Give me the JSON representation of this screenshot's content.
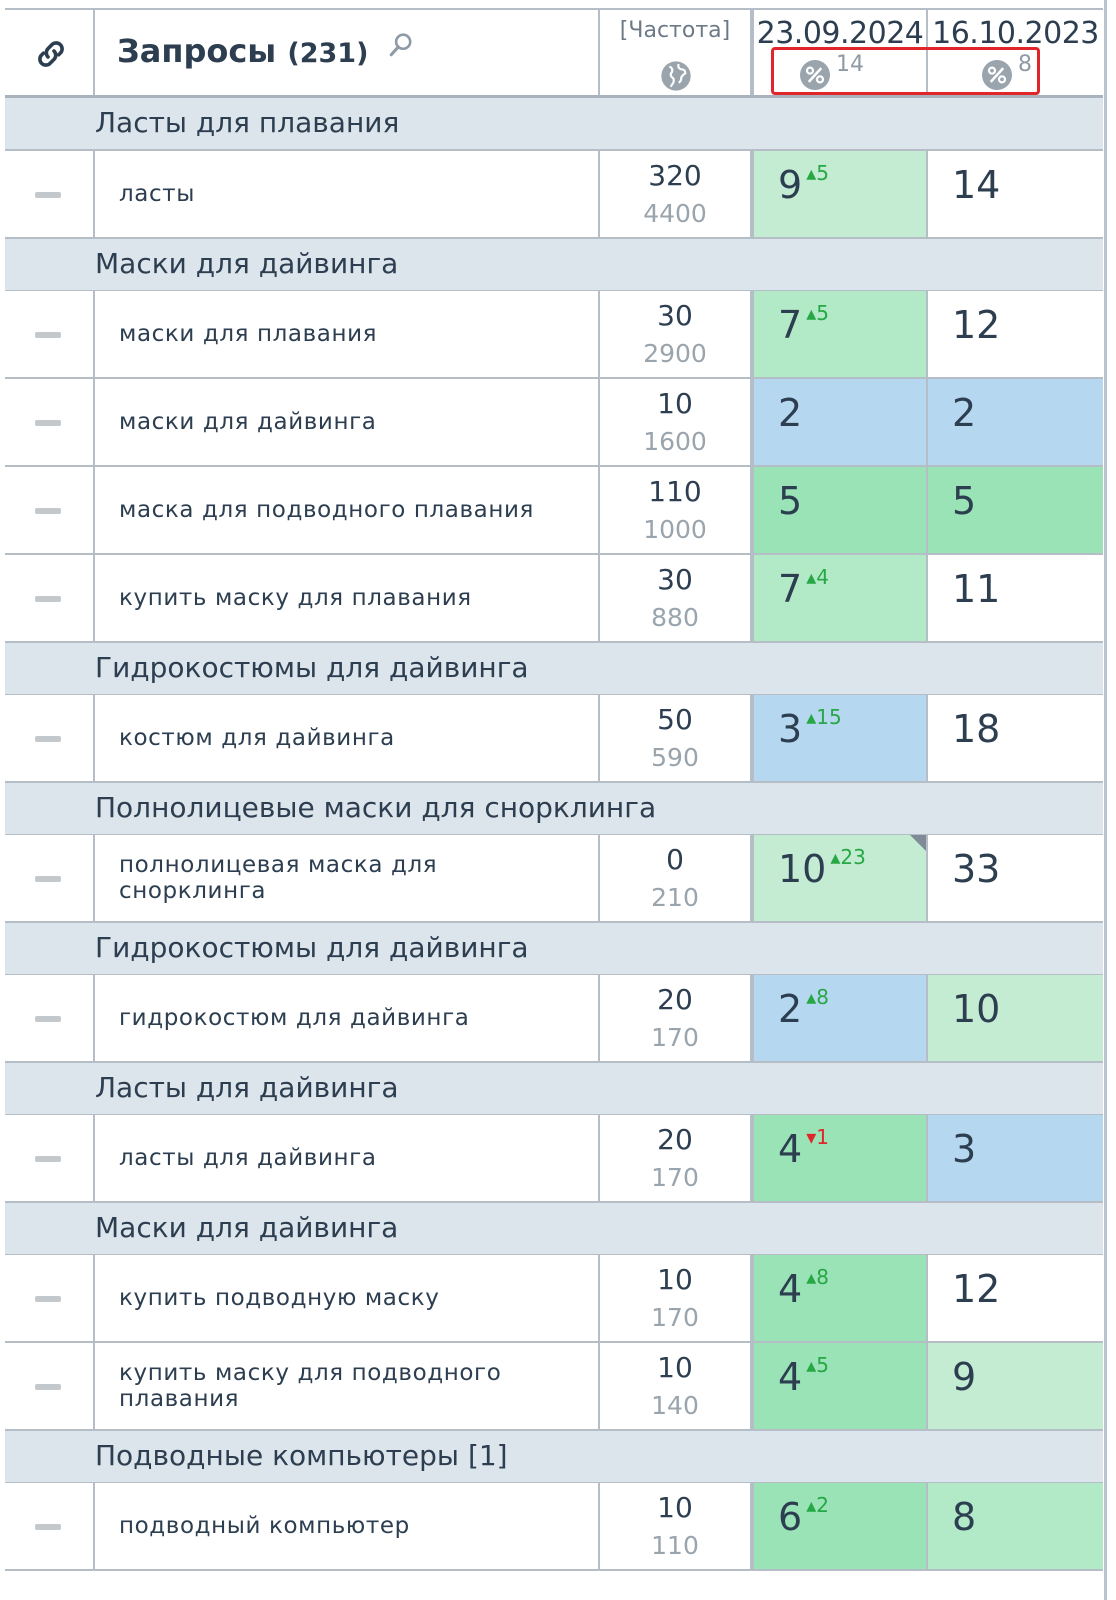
{
  "header": {
    "title": "Запросы",
    "count": "(231)",
    "freq_label": "[Частота]",
    "dates": [
      {
        "label": "23.09.2024",
        "pct_count": "14"
      },
      {
        "label": "16.10.2023",
        "pct_count": "8"
      }
    ]
  },
  "rows": [
    {
      "type": "group",
      "label": "Ласты для плавания"
    },
    {
      "type": "data",
      "query": "ласты",
      "freq_top": "320",
      "freq_bot": "4400",
      "d1": {
        "pos": "9",
        "chg": "5",
        "dir": "up",
        "bg": "light"
      },
      "d2": {
        "pos": "14",
        "bg": "white"
      }
    },
    {
      "type": "group",
      "label": "Маски для дайвинга"
    },
    {
      "type": "data",
      "query": "маски для плавания",
      "freq_top": "30",
      "freq_bot": "2900",
      "d1": {
        "pos": "7",
        "chg": "5",
        "dir": "up",
        "bg": "mid"
      },
      "d2": {
        "pos": "12",
        "bg": "white"
      }
    },
    {
      "type": "data",
      "query": "маски для дайвинга",
      "freq_top": "10",
      "freq_bot": "1600",
      "d1": {
        "pos": "2",
        "bg": "blue"
      },
      "d2": {
        "pos": "2",
        "bg": "blue"
      }
    },
    {
      "type": "data",
      "query": "маска для подводного плавания",
      "freq_top": "110",
      "freq_bot": "1000",
      "d1": {
        "pos": "5",
        "bg": "green"
      },
      "d2": {
        "pos": "5",
        "bg": "green"
      }
    },
    {
      "type": "data",
      "query": "купить маску для плавания",
      "freq_top": "30",
      "freq_bot": "880",
      "d1": {
        "pos": "7",
        "chg": "4",
        "dir": "up",
        "bg": "mid"
      },
      "d2": {
        "pos": "11",
        "bg": "white"
      }
    },
    {
      "type": "group",
      "label": "Гидрокостюмы для дайвинга"
    },
    {
      "type": "data",
      "query": "костюм для дайвинга",
      "freq_top": "50",
      "freq_bot": "590",
      "d1": {
        "pos": "3",
        "chg": "15",
        "dir": "up",
        "bg": "blue"
      },
      "d2": {
        "pos": "18",
        "bg": "white"
      }
    },
    {
      "type": "group",
      "label": "Полнолицевые маски для снорклинга"
    },
    {
      "type": "data",
      "query": "полнолицевая маска для снорклинга",
      "freq_top": "0",
      "freq_bot": "210",
      "d1": {
        "pos": "10",
        "chg": "23",
        "dir": "up",
        "bg": "light",
        "corner": true
      },
      "d2": {
        "pos": "33",
        "bg": "white"
      }
    },
    {
      "type": "group",
      "label": "Гидрокостюмы для дайвинга"
    },
    {
      "type": "data",
      "query": "гидрокостюм для дайвинга",
      "freq_top": "20",
      "freq_bot": "170",
      "d1": {
        "pos": "2",
        "chg": "8",
        "dir": "up",
        "bg": "blue"
      },
      "d2": {
        "pos": "10",
        "bg": "light"
      }
    },
    {
      "type": "group",
      "label": "Ласты для дайвинга"
    },
    {
      "type": "data",
      "query": "ласты для дайвинга",
      "freq_top": "20",
      "freq_bot": "170",
      "d1": {
        "pos": "4",
        "chg": "1",
        "dir": "down",
        "bg": "green"
      },
      "d2": {
        "pos": "3",
        "bg": "blue"
      }
    },
    {
      "type": "group",
      "label": "Маски для дайвинга"
    },
    {
      "type": "data",
      "query": "купить подводную маску",
      "freq_top": "10",
      "freq_bot": "170",
      "d1": {
        "pos": "4",
        "chg": "8",
        "dir": "up",
        "bg": "green"
      },
      "d2": {
        "pos": "12",
        "bg": "white"
      }
    },
    {
      "type": "data",
      "query": "купить маску для подводного плавания",
      "freq_top": "10",
      "freq_bot": "140",
      "d1": {
        "pos": "4",
        "chg": "5",
        "dir": "up",
        "bg": "green"
      },
      "d2": {
        "pos": "9",
        "bg": "light"
      }
    },
    {
      "type": "group",
      "label": "Подводные компьютеры [1]"
    },
    {
      "type": "data",
      "query": "подводный компьютер",
      "freq_top": "10",
      "freq_bot": "110",
      "d1": {
        "pos": "6",
        "chg": "2",
        "dir": "up",
        "bg": "green"
      },
      "d2": {
        "pos": "8",
        "bg": "mid"
      }
    }
  ]
}
